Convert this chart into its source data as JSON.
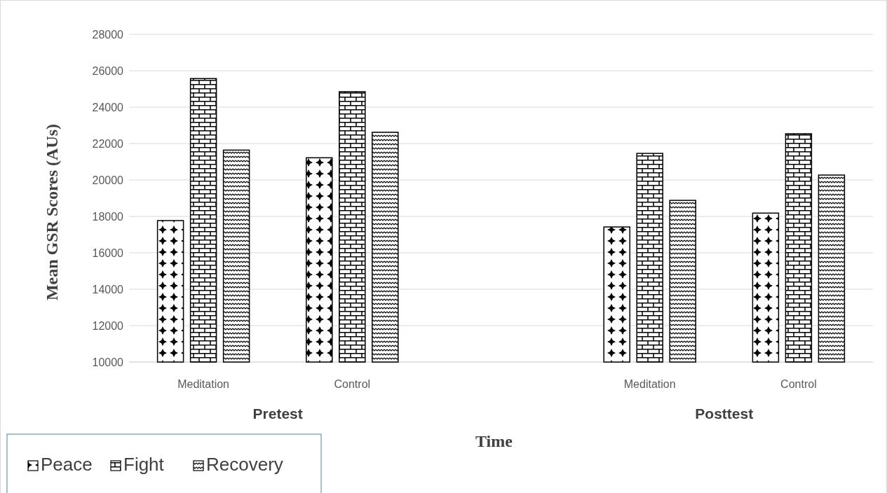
{
  "chart_data": {
    "type": "bar",
    "xlabel": "Time",
    "ylabel": "Mean GSR Scores (AUs)",
    "categories": [
      "Meditation",
      "Control",
      null,
      "Meditation",
      "Control"
    ],
    "series": [
      {
        "name": "Peace",
        "color": "#000000",
        "values": [
          17770,
          21220,
          null,
          17420,
          18180
        ]
      },
      {
        "name": "Fight",
        "color": "#000000",
        "values": [
          25570,
          24850,
          null,
          21460,
          22540
        ]
      },
      {
        "name": "Recovery",
        "color": "#000000",
        "values": [
          21640,
          22620,
          null,
          18880,
          20270
        ]
      }
    ],
    "ylim": [
      10000,
      28000
    ],
    "yticks": [
      10000,
      12000,
      14000,
      16000,
      18000,
      20000,
      22000,
      24000,
      26000,
      28000
    ],
    "grid": "y",
    "legend": "bottom left",
    "annotations": [
      "Pretest",
      "Posttest"
    ]
  }
}
